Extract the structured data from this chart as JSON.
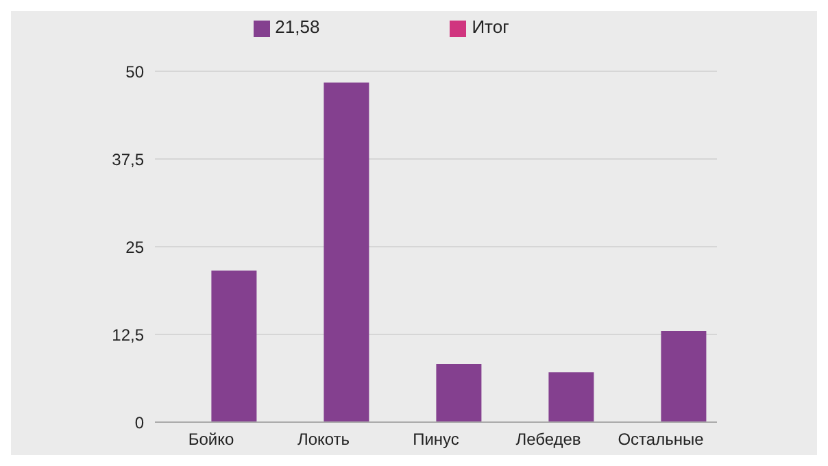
{
  "chart_data": {
    "type": "bar",
    "categories": [
      "Бойко",
      "Локоть",
      "Пинус",
      "Лебедев",
      "Остальные"
    ],
    "series": [
      {
        "name": "Итог",
        "color": "#d0357f",
        "values": [
          null,
          null,
          null,
          null,
          null
        ]
      },
      {
        "name": "21,58",
        "color": "#84408f",
        "values": [
          21.6,
          48.4,
          8.3,
          7.1,
          13.0
        ]
      }
    ],
    "ylim": [
      0,
      50
    ],
    "yticks": [
      0,
      {
        "value": 12.5,
        "label": "12,5"
      },
      25,
      {
        "value": 37.5,
        "label": "37,5"
      },
      50
    ],
    "grid": "y",
    "legend": "top"
  }
}
